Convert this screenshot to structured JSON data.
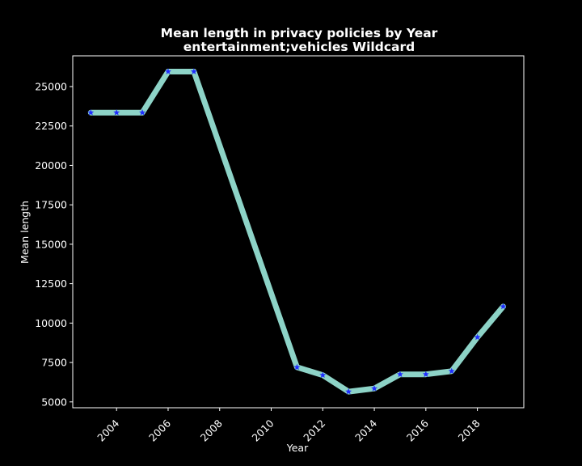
{
  "chart_data": {
    "type": "line",
    "title": "Mean length in privacy policies by Year",
    "subtitle": "entertainment;vehicles Wildcard",
    "xlabel": "Year",
    "ylabel": "Mean length",
    "x": [
      2003,
      2004,
      2005,
      2006,
      2007,
      2011,
      2012,
      2013,
      2014,
      2015,
      2016,
      2017,
      2018,
      2019
    ],
    "series": [
      {
        "values": [
          23350,
          23350,
          23350,
          25950,
          25950,
          7200,
          6700,
          5650,
          5850,
          6750,
          6750,
          6950,
          9100,
          11050
        ]
      }
    ],
    "xlim": [
      2002.3,
      2019.8
    ],
    "ylim": [
      4630,
      26950
    ],
    "xticks": [
      2004,
      2006,
      2008,
      2010,
      2012,
      2014,
      2016,
      2018
    ],
    "xtick_labels": [
      "2004",
      "2006",
      "2008",
      "2010",
      "2012",
      "2014",
      "2016",
      "2018"
    ],
    "yticks": [
      5000,
      7500,
      10000,
      12500,
      15000,
      17500,
      20000,
      22500,
      25000
    ],
    "ytick_labels": [
      "5000",
      "7500",
      "10000",
      "12500",
      "15000",
      "17500",
      "20000",
      "22500",
      "25000"
    ],
    "grid": false,
    "line_color": "#8dd3c7",
    "marker_color": "#1f2cff",
    "marker": "star",
    "background_color": "#000000",
    "axis_color": "#ffffff"
  }
}
